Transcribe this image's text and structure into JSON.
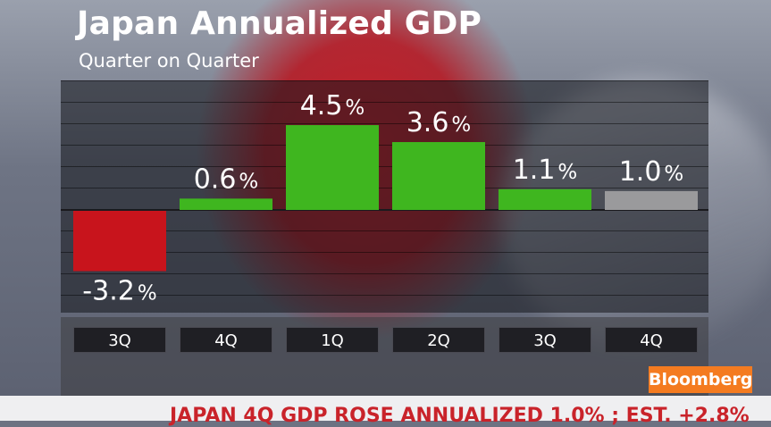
{
  "title": "Japan Annualized GDP",
  "subtitle": "Quarter on Quarter",
  "logo": "Bloomberg",
  "ticker_text": "JAPAN 4Q GDP ROSE ANNUALIZED 1.0% ; EST. +2.8%",
  "colors": {
    "negative": "#c8141c",
    "positive": "#3fb61f",
    "estimate": "#9a9a9c"
  },
  "chart_data": {
    "type": "bar",
    "title": "Japan Annualized GDP",
    "subtitle": "Quarter on Quarter",
    "categories": [
      "3Q",
      "4Q",
      "1Q",
      "2Q",
      "3Q",
      "4Q"
    ],
    "values": [
      -3.2,
      0.6,
      4.5,
      3.6,
      1.1,
      1.0
    ],
    "labels": [
      "-3.2",
      "0.6",
      "4.5",
      "3.6",
      "1.1",
      "1.0"
    ],
    "unit": "%",
    "bar_colors": [
      "negative",
      "positive",
      "positive",
      "positive",
      "positive",
      "estimate"
    ],
    "ylim": [
      -4.2,
      6.0
    ],
    "grid": true
  }
}
